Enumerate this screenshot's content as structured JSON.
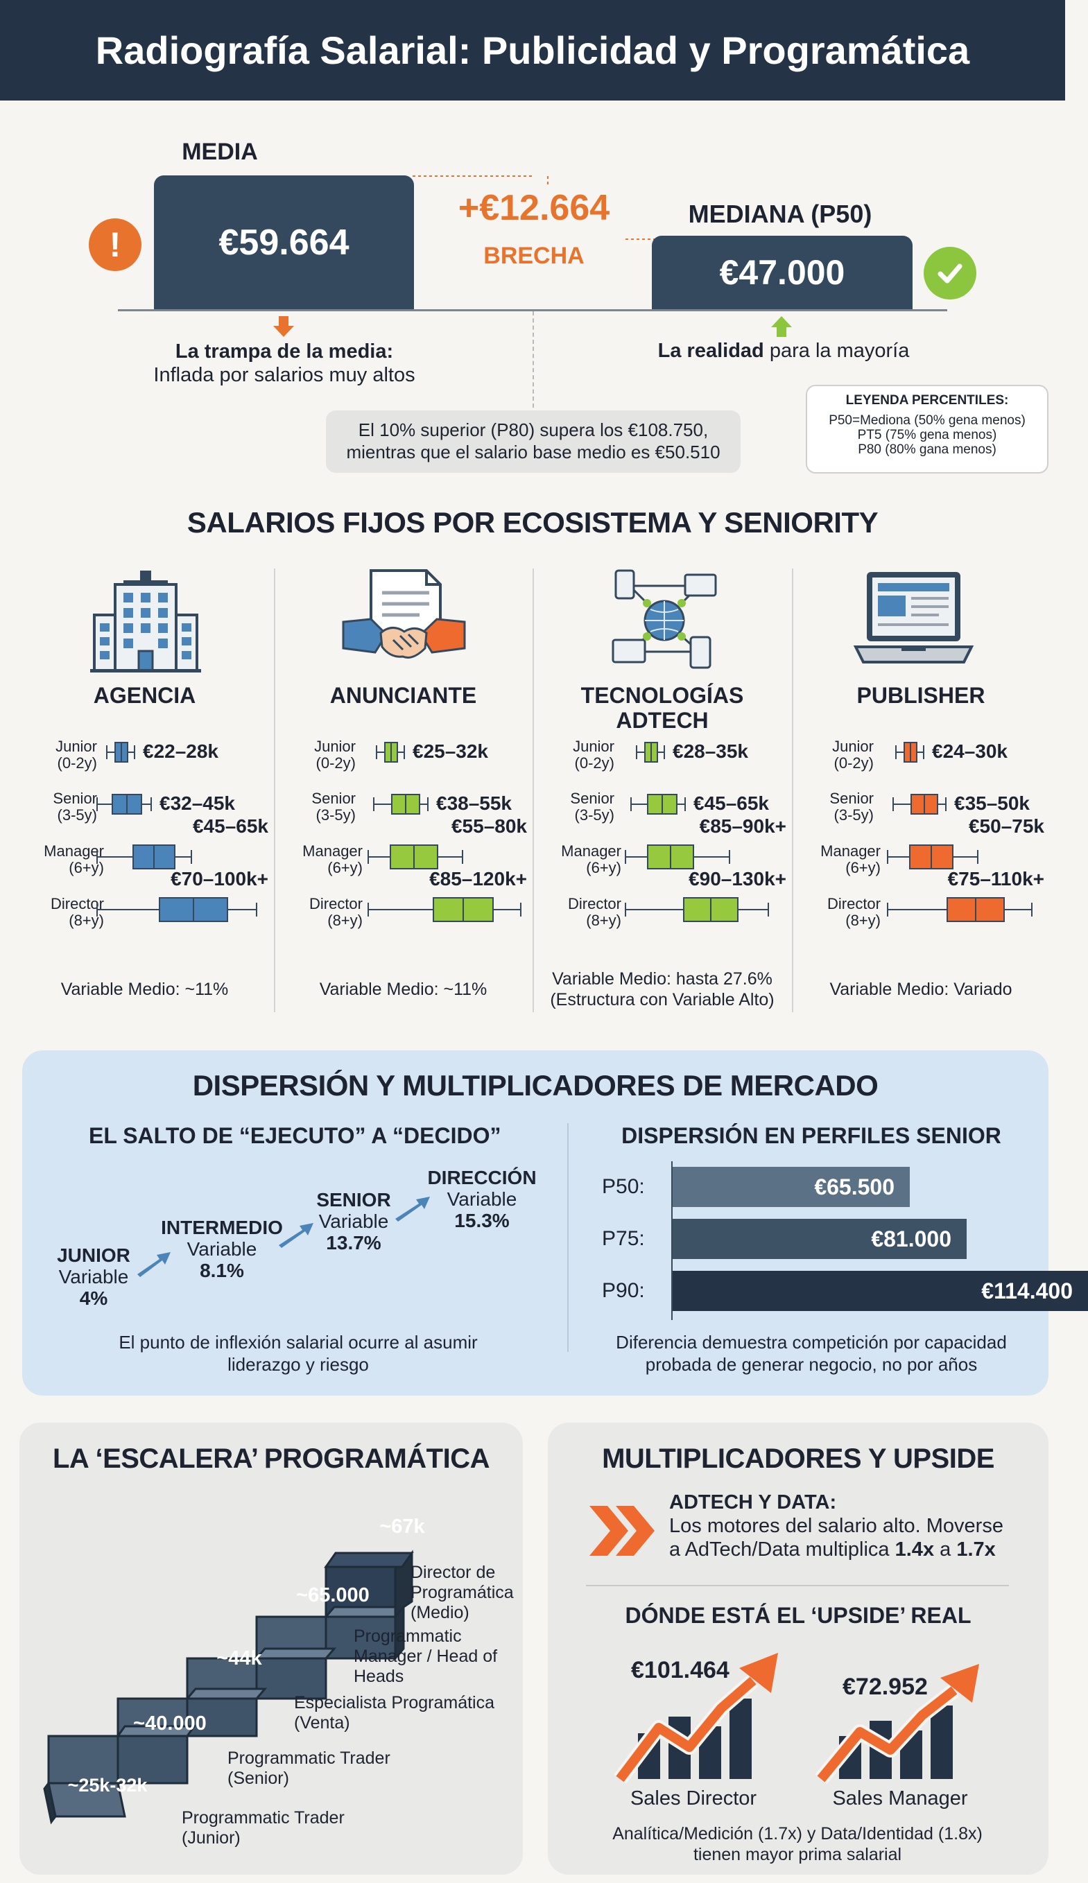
{
  "title": "Radiografía Salarial: Publicidad y Programática",
  "top": {
    "media_label": "MEDIA",
    "media_value": "€59.664",
    "gap_value": "+€12.664",
    "gap_label": "BRECHA",
    "median_label": "MEDIANA (P50)",
    "median_value": "€47.000",
    "trap_title": "La trampa de la media:",
    "trap_text": "Inflada por salarios muy altos",
    "reality_bold": "La realidad",
    "reality_rest": " para la mayoría",
    "note_line1": "El 10% superior (P80) supera los €108.750,",
    "note_line2": "mientras que el salario base medio es €50.510",
    "legend_title": "LEYENDA PERCENTILES:",
    "legend_items": [
      "P50=Mediona (50% gena menos)",
      "PT5 (75% gena menos)",
      "P80 (80% gana menos)"
    ],
    "colors": {
      "dark": "#34495e",
      "accent": "#e8732c",
      "ok": "#8cc63f"
    }
  },
  "ecosystems": {
    "title": "SALARIOS FIJOS POR ECOSISTEMA Y SENIORITY",
    "levels": [
      {
        "name": "Junior",
        "years": "(0-2y)"
      },
      {
        "name": "Senior",
        "years": "(3-5y)"
      },
      {
        "name": "Manager",
        "years": "(6+y)"
      },
      {
        "name": "Director",
        "years": "(8+y)"
      }
    ],
    "columns": [
      {
        "name": "AGENCIA",
        "name2": "",
        "icon": "office-building-icon",
        "color": "#4a84b8",
        "ranges": [
          "€22–28k",
          "€32–45k",
          "€45–65k",
          "€70–100k+"
        ],
        "variable": "Variable Medio: ~11%",
        "variable2": ""
      },
      {
        "name": "ANUNCIANTE",
        "name2": "",
        "icon": "handshake-icon",
        "color": "#96c93d",
        "ranges": [
          "€25–32k",
          "€38–55k",
          "€55–80k",
          "€85–120k+"
        ],
        "variable": "Variable Medio: ~11%",
        "variable2": ""
      },
      {
        "name": "TECNOLOGÍAS",
        "name2": "ADTECH",
        "icon": "network-icon",
        "color": "#96c93d",
        "ranges": [
          "€28–35k",
          "€45–65k",
          "€85–90k+",
          "€90–130k+"
        ],
        "variable": "Variable Medio: hasta 27.6%",
        "variable2": "(Estructura con Variable Alto)"
      },
      {
        "name": "PUBLISHER",
        "name2": "",
        "icon": "laptop-icon",
        "color": "#ef6a2e",
        "ranges": [
          "€24–30k",
          "€35–50k",
          "€50–75k",
          "€75–110k+"
        ],
        "variable": "Variable Medio: Variado",
        "variable2": ""
      }
    ]
  },
  "dispersion": {
    "title": "DISPERSIÓN Y MULTIPLICADORES DE MERCADO",
    "left_title": "EL SALTO DE “EJECUTO” A “DECIDO”",
    "steps": [
      {
        "name": "JUNIOR",
        "label": "Variable",
        "value": "4%"
      },
      {
        "name": "INTERMEDIO",
        "label": "Variable",
        "value": "8.1%"
      },
      {
        "name": "SENIOR",
        "label": "Variable",
        "value": "13.7%"
      },
      {
        "name": "DIRECCIÓN",
        "label": "Variable",
        "value": "15.3%"
      }
    ],
    "left_note1": "El punto de inflexión salarial ocurre al asumir",
    "left_note2": "liderazgo y riesgo",
    "right_title": "DISPERSIÓN EN PERFILES SENIOR",
    "right_note1": "Diferencia demuestra competición por capacidad",
    "right_note2": "probada de generar negocio, no por años"
  },
  "chart_data": {
    "type": "bar",
    "orientation": "horizontal",
    "categories": [
      "P50:",
      "P75:",
      "P90:"
    ],
    "values": [
      65500,
      81000,
      114400
    ],
    "labels": [
      "€65.500",
      "€81.000",
      "€114.400"
    ],
    "colors": [
      "#5b7185",
      "#3e5266",
      "#243446"
    ],
    "xlim": [
      0,
      118000
    ]
  },
  "ladder": {
    "title": "LA ‘ESCALERA’ PROGRAMÁTICA",
    "steps": [
      {
        "value": "~25k-32k",
        "role": [
          "Programmatic Trader",
          "(Junior)"
        ]
      },
      {
        "value": "~40.000",
        "role": [
          "Programmatic Trader",
          "(Senior)"
        ]
      },
      {
        "value": "~44k",
        "role": [
          "Especialista Programática",
          "(Venta)"
        ]
      },
      {
        "value": "~65.000",
        "role": [
          "Programmatic",
          "Manager / Head of",
          "Heads"
        ]
      },
      {
        "value": "~67k",
        "role": [
          "Director de",
          "Programática",
          "(Medio)"
        ]
      }
    ]
  },
  "multipliers": {
    "title": "MULTIPLICADORES Y UPSIDE",
    "adtech_title": "ADTECH Y DATA:",
    "adtech_line1": "Los motores del salario alto. Moverse",
    "adtech_line2_a": "a AdTech/Data multiplica ",
    "adtech_line2_b": "1.4x",
    "adtech_line2_c": " a ",
    "adtech_line2_d": "1.7x",
    "upside_title": "DÓNDE ESTÁ EL ‘UPSIDE’ REAL",
    "roles": [
      {
        "value": "€101.464",
        "name": "Sales Director"
      },
      {
        "value": "€72.952",
        "name": "Sales Manager"
      }
    ],
    "note1": "Analítica/Medición (1.7x) y Data/Identidad (1.8x)",
    "note2": "tienen mayor prima salarial"
  }
}
